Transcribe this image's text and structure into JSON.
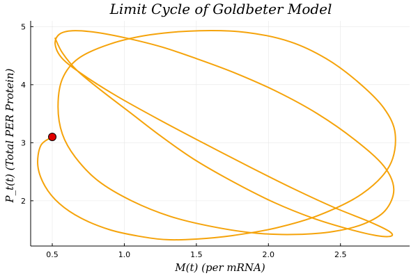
{
  "chart_data": {
    "type": "line",
    "title": "Limit Cycle of Goldbeter Model",
    "xlabel": "M(t) (per mRNA)",
    "ylabel": "P_t(t) (Total PER Protein)",
    "xlim": [
      0.35,
      2.98
    ],
    "ylim": [
      1.22,
      5.1
    ],
    "xticks": [
      0.5,
      1.0,
      1.5,
      2.0,
      2.5
    ],
    "xtick_labels": [
      "0.5",
      "1.0",
      "1.5",
      "2.0",
      "2.5"
    ],
    "yticks": [
      2,
      3,
      4,
      5
    ],
    "ytick_labels": [
      "2",
      "3",
      "4",
      "5"
    ],
    "grid": true,
    "legend": false,
    "line_color": "#F5A30A",
    "marker_color": "#E00000",
    "series": [
      {
        "type": "line",
        "x": [
          0.5,
          0.42,
          0.4,
          0.45,
          0.55,
          0.7,
          0.9,
          1.1,
          1.29,
          1.5,
          1.75,
          2.05,
          2.35,
          2.65,
          2.84,
          2.88,
          2.8,
          2.62,
          2.4,
          2.15,
          1.85,
          1.52,
          1.18,
          0.9,
          0.68,
          0.57,
          0.54,
          0.57,
          0.66,
          0.82,
          1.05,
          1.32,
          1.62,
          1.92,
          2.2,
          2.45,
          2.66,
          2.81,
          2.87,
          2.8,
          2.6,
          2.34,
          2.06,
          1.77,
          1.5,
          1.26,
          1.02,
          0.81,
          0.64,
          0.55,
          0.52,
          0.57,
          0.72,
          0.95,
          1.24,
          1.56,
          1.88,
          2.18,
          2.46,
          2.7,
          2.84,
          2.85,
          2.75,
          2.56,
          2.31,
          2.04,
          1.76,
          1.48,
          1.25,
          1.04,
          0.84,
          0.67,
          0.57,
          0.52
        ],
        "y": [
          3.1,
          2.95,
          2.6,
          2.25,
          1.95,
          1.7,
          1.5,
          1.39,
          1.33,
          1.34,
          1.4,
          1.53,
          1.75,
          2.12,
          2.6,
          3.15,
          3.6,
          4.05,
          4.45,
          4.74,
          4.9,
          4.93,
          4.86,
          4.7,
          4.45,
          4.1,
          3.62,
          3.15,
          2.75,
          2.34,
          2.0,
          1.73,
          1.55,
          1.44,
          1.42,
          1.47,
          1.6,
          1.83,
          2.2,
          2.6,
          3.05,
          3.5,
          3.88,
          4.2,
          4.45,
          4.65,
          4.8,
          4.9,
          4.93,
          4.87,
          4.7,
          4.45,
          4.16,
          3.8,
          3.4,
          2.98,
          2.57,
          2.2,
          1.88,
          1.64,
          1.47,
          1.39,
          1.4,
          1.51,
          1.7,
          1.97,
          2.32,
          2.72,
          3.12,
          3.52,
          3.9,
          4.25,
          4.55,
          4.8
        ]
      }
    ],
    "marker": {
      "x": 0.5,
      "y": 3.1
    }
  }
}
